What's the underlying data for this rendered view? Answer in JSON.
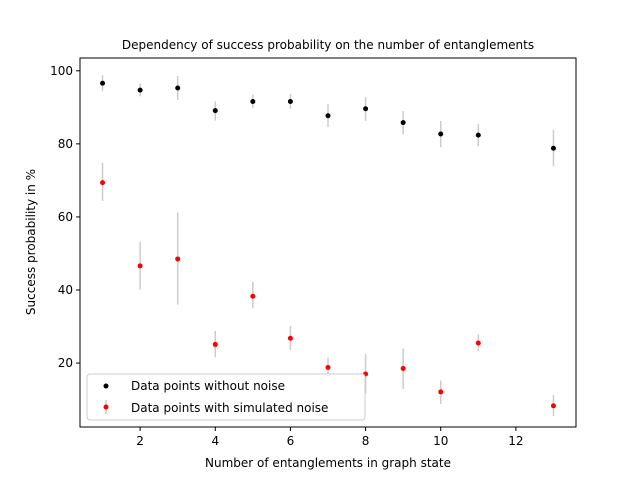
{
  "chart_data": {
    "type": "scatter",
    "title": "Dependency of success probability on the number of entanglements",
    "xlabel": "Number of entanglements in graph state",
    "ylabel": "Success probability in %",
    "xlim": [
      0.4,
      13.6
    ],
    "ylim": [
      2.5,
      103.5
    ],
    "xticks": [
      2,
      4,
      6,
      8,
      10,
      12
    ],
    "yticks": [
      20,
      40,
      60,
      80,
      100
    ],
    "grid": false,
    "legend_position": "bottom-left",
    "error_bar_color": "#cccccc",
    "series": [
      {
        "name": "Data points without noise",
        "color": "#000000",
        "x": [
          1,
          2,
          3,
          4,
          5,
          6,
          7,
          8,
          9,
          10,
          11,
          13
        ],
        "y": [
          96.6,
          94.7,
          95.3,
          89.1,
          91.6,
          91.6,
          87.7,
          89.6,
          85.8,
          82.7,
          82.4,
          78.8
        ],
        "yerr_low": [
          94.5,
          93.0,
          92.0,
          86.4,
          89.8,
          89.6,
          84.6,
          86.3,
          82.6,
          79.1,
          79.3,
          73.9
        ],
        "yerr_high": [
          98.8,
          96.5,
          98.6,
          91.6,
          93.5,
          93.7,
          90.9,
          92.8,
          89.0,
          86.3,
          85.4,
          83.9
        ]
      },
      {
        "name": "Data points with simulated noise",
        "color": "#ff0000",
        "x": [
          1,
          2,
          3,
          4,
          5,
          6,
          7,
          8,
          9,
          10,
          11,
          13
        ],
        "y": [
          69.4,
          46.6,
          48.5,
          25.1,
          38.3,
          26.8,
          18.8,
          17.0,
          18.5,
          12.1,
          25.5,
          8.3
        ],
        "yerr_low": [
          64.4,
          40.1,
          36.0,
          21.6,
          35.0,
          23.6,
          16.0,
          11.7,
          12.9,
          8.8,
          23.3,
          5.5
        ],
        "yerr_high": [
          74.9,
          53.2,
          61.2,
          28.8,
          42.2,
          30.2,
          21.5,
          22.5,
          24.0,
          15.2,
          27.8,
          11.3
        ]
      }
    ]
  }
}
